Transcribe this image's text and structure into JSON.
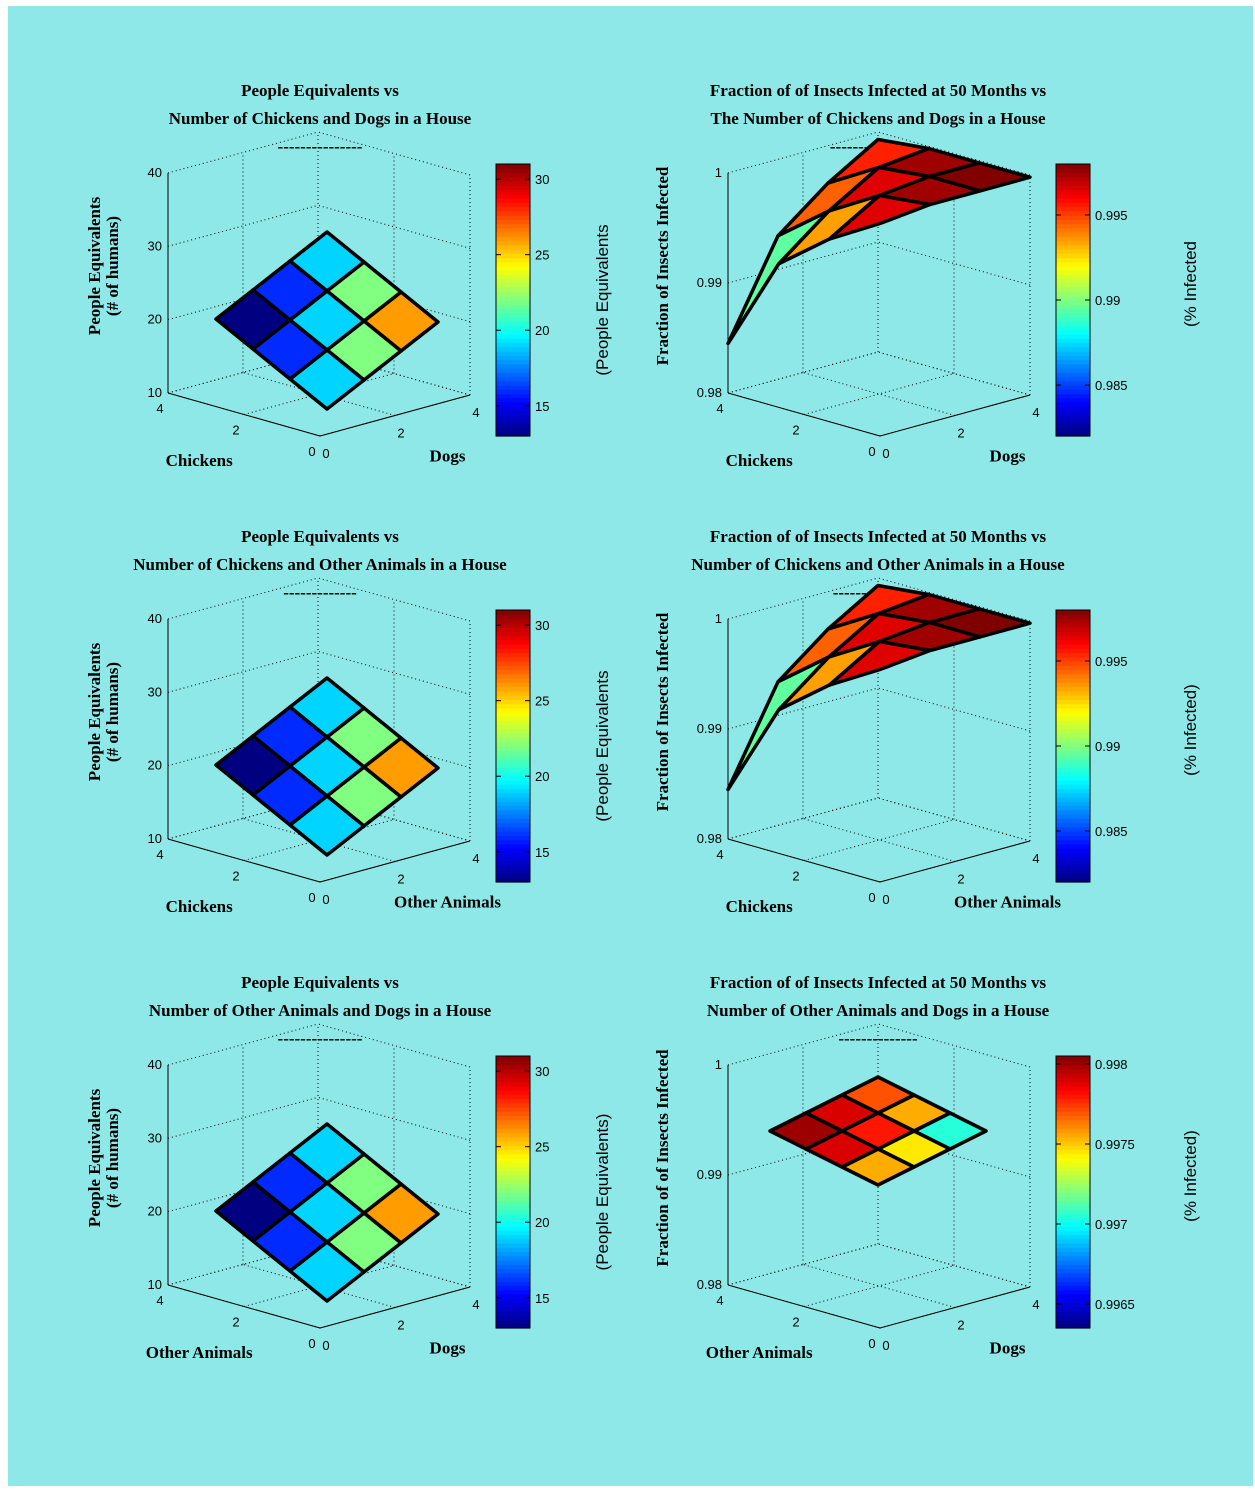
{
  "colors": {
    "figure_background": "#8ee8e8",
    "surface_edge": "#000000",
    "colormap": "jet"
  },
  "chart_data": [
    {
      "id": "pe-chickens-dogs",
      "type": "surface3d",
      "title_lines": [
        "People Equivalents vs",
        "Number of Chickens and Dogs in a House"
      ],
      "title_underline": "---------------",
      "x_label": "Dogs",
      "y_label": "Chickens",
      "z_label_lines": [
        "People Equivalents",
        "(# of humans)"
      ],
      "x_ticks": [
        "0",
        "2",
        "4"
      ],
      "y_ticks": [
        "0",
        "2",
        "4"
      ],
      "z_ticks": [
        "10",
        "20",
        "30",
        "40"
      ],
      "zlim": [
        10,
        40
      ],
      "colorbar_label": "(People Equivalents",
      "colorbar_ticks": [
        "15",
        "20",
        "25",
        "30"
      ],
      "clim": [
        13,
        31
      ],
      "cell_colors": [
        [
          13,
          16,
          19
        ],
        [
          16,
          19,
          22
        ],
        [
          19,
          22,
          26
        ]
      ],
      "grid": true
    },
    {
      "id": "frac-chickens-dogs",
      "type": "surface3d",
      "title_lines": [
        "Fraction of of Insects Infected at 50 Months vs",
        "The Number of Chickens and Dogs in a House"
      ],
      "title_underline": "-----------------",
      "x_label": "Dogs",
      "y_label": "Chickens",
      "z_label_lines": [
        "Fraction of Insects Infected"
      ],
      "x_ticks": [
        "0",
        "2",
        "4"
      ],
      "y_ticks": [
        "0",
        "2",
        "4"
      ],
      "z_ticks": [
        "0.98",
        "0.99",
        "1"
      ],
      "zlim": [
        0.98,
        1.0
      ],
      "colorbar_label": "(% Infected",
      "colorbar_ticks": [
        "0.985",
        "0.99",
        "0.995"
      ],
      "clim": [
        0.982,
        0.998
      ],
      "cell_colors": [
        [
          0.9895,
          0.9945,
          0.9955
        ],
        [
          0.9935,
          0.9965,
          0.9975
        ],
        [
          0.9965,
          0.9975,
          0.998
        ]
      ],
      "grid": true
    },
    {
      "id": "pe-chickens-other",
      "type": "surface3d",
      "title_lines": [
        "People Equivalents vs",
        "Number of Chickens and Other Animals in a House"
      ],
      "title_underline": "-------------",
      "x_label": "Other Animals",
      "y_label": "Chickens",
      "z_label_lines": [
        "People Equivalents",
        "(# of humans)"
      ],
      "x_ticks": [
        "0",
        "2",
        "4"
      ],
      "y_ticks": [
        "0",
        "2",
        "4"
      ],
      "z_ticks": [
        "10",
        "20",
        "30",
        "40"
      ],
      "zlim": [
        10,
        40
      ],
      "colorbar_label": "(People Equivalents",
      "colorbar_ticks": [
        "15",
        "20",
        "25",
        "30"
      ],
      "clim": [
        13,
        31
      ],
      "cell_colors": [
        [
          13,
          16,
          19
        ],
        [
          16,
          19,
          22
        ],
        [
          19,
          22,
          26
        ]
      ],
      "grid": true
    },
    {
      "id": "frac-chickens-other",
      "type": "surface3d",
      "title_lines": [
        "Fraction of of Insects Infected at 50 Months vs",
        "Number of Chickens and Other Animals in a House"
      ],
      "title_underline": "----------------",
      "x_label": "Other Animals",
      "y_label": "Chickens",
      "z_label_lines": [
        "Fraction of Insects Infected"
      ],
      "x_ticks": [
        "0",
        "2",
        "4"
      ],
      "y_ticks": [
        "0",
        "2",
        "4"
      ],
      "z_ticks": [
        "0.98",
        "0.99",
        "1"
      ],
      "zlim": [
        0.98,
        1.0
      ],
      "colorbar_label": "(% Infected)",
      "colorbar_ticks": [
        "0.985",
        "0.99",
        "0.995"
      ],
      "clim": [
        0.982,
        0.998
      ],
      "cell_colors": [
        [
          0.9895,
          0.9945,
          0.9955
        ],
        [
          0.9935,
          0.9965,
          0.9975
        ],
        [
          0.9965,
          0.9975,
          0.998
        ]
      ],
      "grid": true
    },
    {
      "id": "pe-other-dogs",
      "type": "surface3d",
      "title_lines": [
        "People Equivalents vs",
        "Number of Other Animals and Dogs in a House"
      ],
      "title_underline": "---------------",
      "x_label": "Dogs",
      "y_label": "Other Animals",
      "z_label_lines": [
        "People Equivalents",
        "(# of humans)"
      ],
      "x_ticks": [
        "0",
        "2",
        "4"
      ],
      "y_ticks": [
        "0",
        "2",
        "4"
      ],
      "z_ticks": [
        "10",
        "20",
        "30",
        "40"
      ],
      "zlim": [
        10,
        40
      ],
      "colorbar_label": "(People Equivalents)",
      "colorbar_ticks": [
        "15",
        "20",
        "25",
        "30"
      ],
      "clim": [
        13,
        31
      ],
      "cell_colors": [
        [
          13,
          16,
          19
        ],
        [
          16,
          19,
          22
        ],
        [
          19,
          22,
          26
        ]
      ],
      "grid": true
    },
    {
      "id": "frac-other-dogs",
      "type": "surface3d",
      "title_lines": [
        "Fraction of of Insects Infected at 50 Months vs",
        "Number of Other Animals and Dogs in a House"
      ],
      "title_underline": "--------------",
      "x_label": "Dogs",
      "y_label": "Other Animals",
      "z_label_lines": [
        "Fraction of of Insects Infected"
      ],
      "x_ticks": [
        "0",
        "2",
        "4"
      ],
      "y_ticks": [
        "0",
        "2",
        "4"
      ],
      "z_ticks": [
        "0.98",
        "0.99",
        "1"
      ],
      "zlim": [
        0.98,
        1.0
      ],
      "colorbar_label": "(% Infected)",
      "colorbar_ticks": [
        "0.9965",
        "0.997",
        "0.9975",
        "0.998"
      ],
      "clim": [
        0.99635,
        0.99805
      ],
      "cell_colors": [
        [
          0.998,
          0.9979,
          0.9977
        ],
        [
          0.9979,
          0.9978,
          0.99755
        ],
        [
          0.99755,
          0.99745,
          0.99705
        ]
      ],
      "grid": true
    }
  ]
}
